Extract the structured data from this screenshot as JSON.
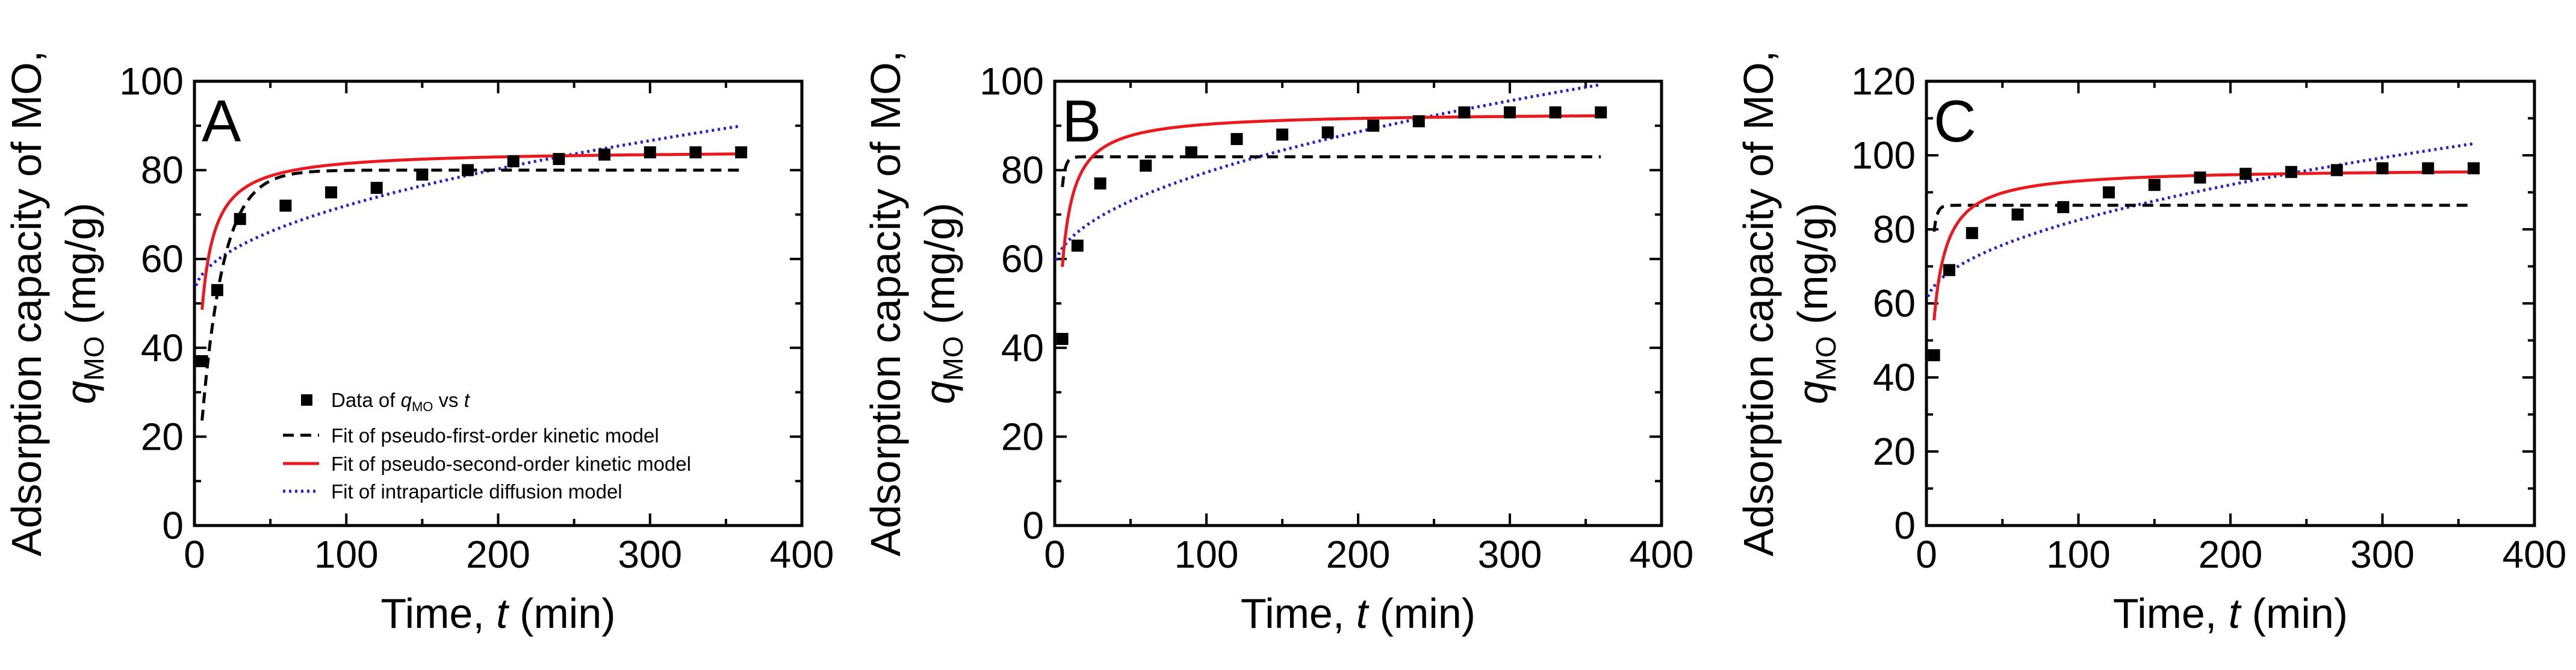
{
  "colors": {
    "data": "#000000",
    "pfo": "#000000",
    "pso": "#e8191f",
    "ipd": "#2222c8"
  },
  "legend": {
    "data_prefix": "Data of ",
    "data_q": "q",
    "data_sub": "MO",
    "data_mid": " vs ",
    "data_t": "t",
    "pfo": "Fit of pseudo-first-order kinetic model",
    "pso": "Fit of pseudo-second-order kinetic model",
    "ipd": "Fit of intraparticle diffusion model"
  },
  "axis_text": {
    "x_main": "Time, ",
    "x_var": "t",
    "x_unit": " (min)",
    "y_line1": "Adsorption capacity of MO,",
    "y_q": "q",
    "y_sub": "MO",
    "y_unit": " (mg/g)"
  },
  "chart_data": [
    {
      "type": "scatter",
      "panel": "A",
      "xlim": [
        0,
        400
      ],
      "ylim": [
        0,
        100
      ],
      "xticks": [
        0,
        100,
        200,
        300,
        400
      ],
      "yticks": [
        0,
        20,
        40,
        60,
        80,
        100
      ],
      "xlabel": "Time, t (min)",
      "ylabel": "Adsorption capacity of MO, qMO (mg/g)",
      "points": {
        "x": [
          5,
          15,
          30,
          60,
          90,
          120,
          150,
          180,
          210,
          240,
          270,
          300,
          330,
          360
        ],
        "y": [
          37,
          53,
          69,
          72,
          75,
          76,
          79,
          80,
          82,
          82.5,
          83.5,
          84,
          84,
          84
        ]
      },
      "pfo": {
        "qe": 80,
        "k": 0.07
      },
      "pso": {
        "qe": 84.5,
        "k": 0.0032
      },
      "ipd": {
        "kid": 2.0,
        "c": 52
      }
    },
    {
      "type": "scatter",
      "panel": "B",
      "xlim": [
        0,
        400
      ],
      "ylim": [
        0,
        100
      ],
      "xticks": [
        0,
        100,
        200,
        300,
        400
      ],
      "yticks": [
        0,
        20,
        40,
        60,
        80,
        100
      ],
      "xlabel": "Time, t (min)",
      "ylabel": "Adsorption capacity of MO, qMO (mg/g)",
      "points": {
        "x": [
          5,
          15,
          30,
          60,
          90,
          120,
          150,
          180,
          210,
          240,
          270,
          300,
          330,
          360
        ],
        "y": [
          42,
          63,
          77,
          81,
          84,
          87,
          88,
          88.5,
          90,
          91,
          93,
          93,
          93,
          93
        ]
      },
      "pfo": {
        "qe": 83,
        "k": 0.5
      },
      "pso": {
        "qe": 93,
        "k": 0.0036
      },
      "ipd": {
        "kid": 2.2,
        "c": 57.5
      }
    },
    {
      "type": "scatter",
      "panel": "C",
      "xlim": [
        0,
        400
      ],
      "ylim": [
        0,
        120
      ],
      "xticks": [
        0,
        100,
        200,
        300,
        400
      ],
      "yticks": [
        0,
        20,
        40,
        60,
        80,
        100,
        120
      ],
      "xlabel": "Time, t (min)",
      "ylabel": "Adsorption capacity of MO, qMO (mg/g)",
      "points": {
        "x": [
          5,
          15,
          30,
          60,
          90,
          120,
          150,
          180,
          210,
          240,
          270,
          300,
          330,
          360
        ],
        "y": [
          46,
          69,
          79,
          84,
          86,
          90,
          92,
          94,
          95,
          95.5,
          96,
          96.5,
          96.5,
          96.5
        ]
      },
      "pfo": {
        "qe": 86.5,
        "k": 0.5
      },
      "pso": {
        "qe": 96.5,
        "k": 0.0028
      },
      "ipd": {
        "kid": 2.3,
        "c": 59.5
      }
    }
  ]
}
